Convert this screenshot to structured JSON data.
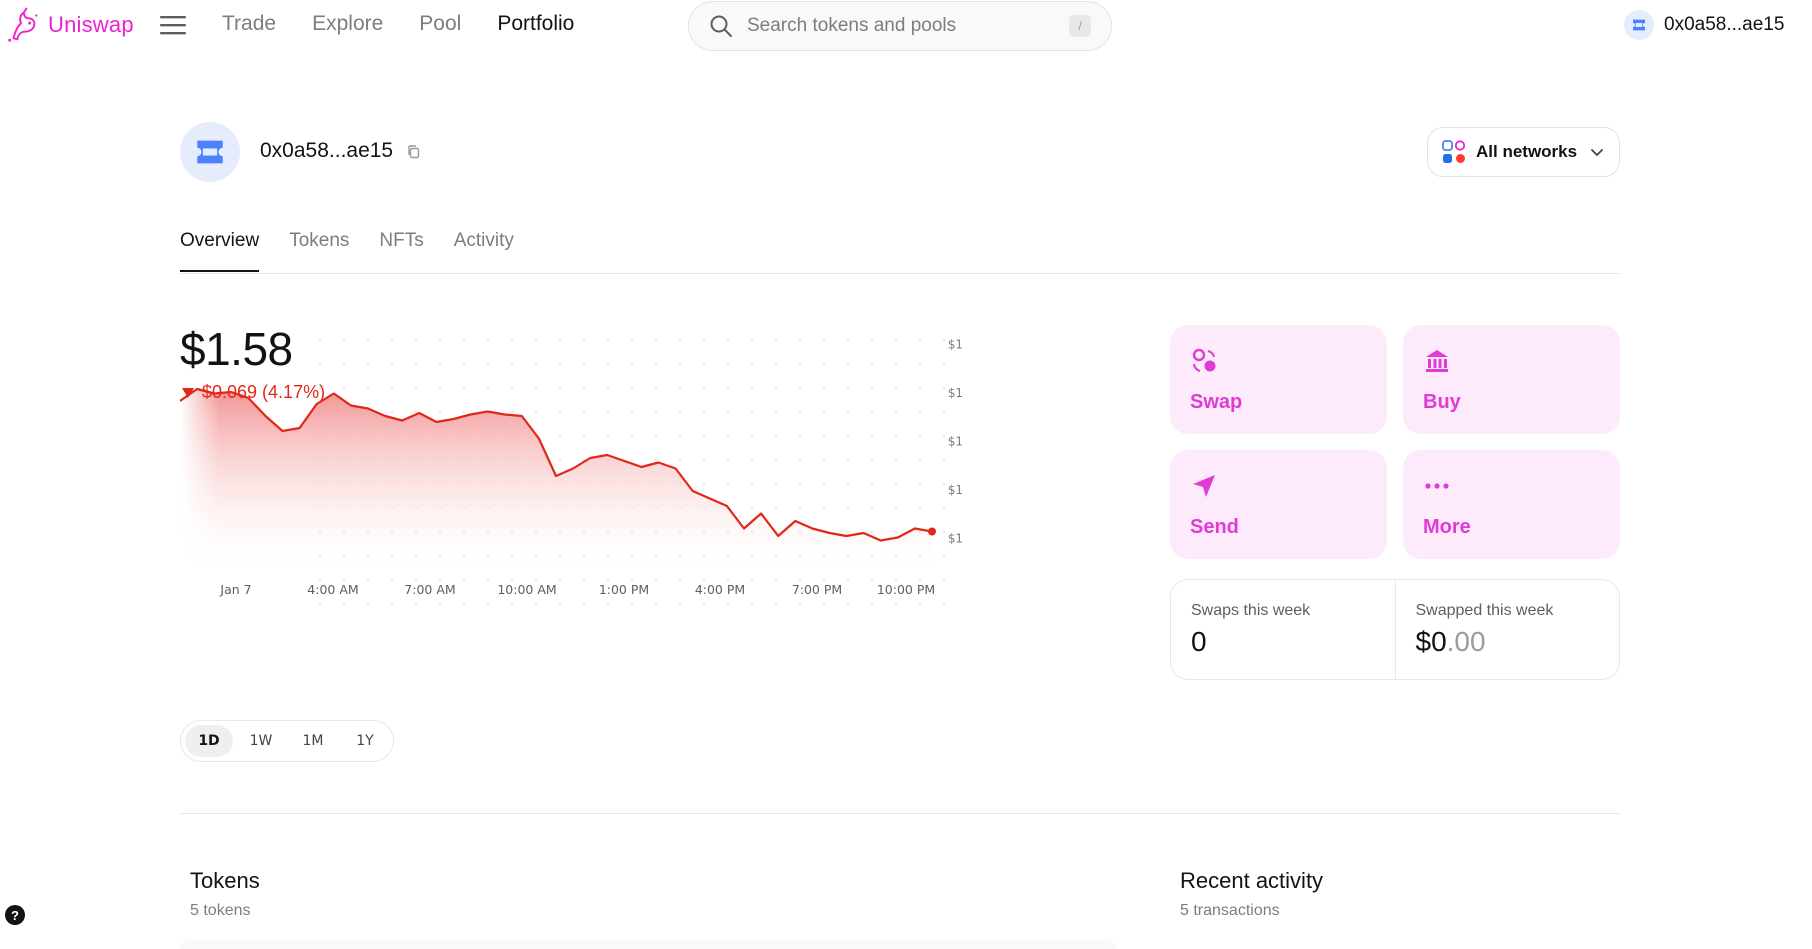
{
  "nav": {
    "brand": "Uniswap",
    "links": [
      {
        "label": "Trade",
        "active": false
      },
      {
        "label": "Explore",
        "active": false
      },
      {
        "label": "Pool",
        "active": false
      },
      {
        "label": "Portfolio",
        "active": true
      }
    ],
    "search_placeholder": "Search tokens and pools",
    "search_shortcut": "/",
    "account_short": "0x0a58...ae15"
  },
  "header": {
    "address": "0x0a58...ae15",
    "network_label": "All networks"
  },
  "tabs": [
    {
      "label": "Overview",
      "active": true
    },
    {
      "label": "Tokens",
      "active": false
    },
    {
      "label": "NFTs",
      "active": false
    },
    {
      "label": "Activity",
      "active": false
    }
  ],
  "portfolio": {
    "balance": "$1.58",
    "change_text": "$0.069 (4.17%)",
    "change_direction": "down",
    "down_color": "#e0271a"
  },
  "chart_data": {
    "type": "area",
    "x_tick_labels": [
      "Jan 7",
      "4:00 AM",
      "7:00 AM",
      "10:00 AM",
      "1:00 PM",
      "4:00 PM",
      "7:00 PM",
      "10:00 PM"
    ],
    "y_tick_labels": [
      "$1",
      "$1",
      "$1",
      "$1",
      "$1",
      "$1"
    ],
    "y": [
      1.65,
      1.658,
      1.655,
      1.656,
      1.652,
      1.64,
      1.63,
      1.632,
      1.648,
      1.655,
      1.647,
      1.645,
      1.64,
      1.637,
      1.642,
      1.636,
      1.638,
      1.641,
      1.643,
      1.641,
      1.64,
      1.625,
      1.6,
      1.605,
      1.612,
      1.614,
      1.61,
      1.606,
      1.609,
      1.605,
      1.59,
      1.585,
      1.58,
      1.565,
      1.575,
      1.56,
      1.57,
      1.565,
      1.562,
      1.56,
      1.562,
      1.557,
      1.559,
      1.565,
      1.563
    ],
    "series_color": "#e0271a",
    "grid": "dotted"
  },
  "range_options": [
    {
      "label": "1D",
      "active": true
    },
    {
      "label": "1W",
      "active": false
    },
    {
      "label": "1M",
      "active": false
    },
    {
      "label": "1Y",
      "active": false
    }
  ],
  "actions": {
    "swap": "Swap",
    "buy": "Buy",
    "send": "Send",
    "more": "More",
    "accent": "#e13ad7"
  },
  "stats": {
    "swaps_label": "Swaps this week",
    "swaps_value": "0",
    "swapped_label": "Swapped this week",
    "swapped_dollars": "$0",
    "swapped_cents": ".00"
  },
  "tokens_section": {
    "title": "Tokens",
    "subtitle": "5 tokens"
  },
  "activity_section": {
    "title": "Recent activity",
    "subtitle": "5 transactions"
  },
  "help_label": "?"
}
